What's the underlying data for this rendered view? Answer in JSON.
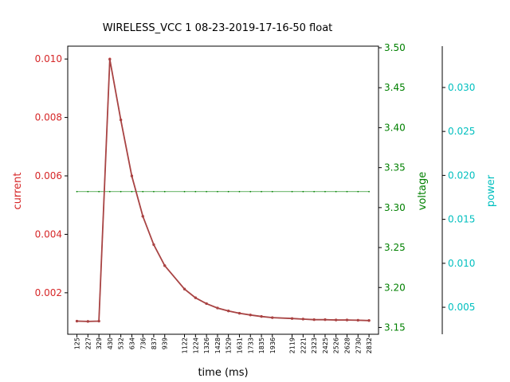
{
  "chart_data": {
    "type": "line",
    "title": "WIRELESS_VCC   1   08-23-2019-17-16-50   float",
    "xlabel": "time (ms)",
    "x_ticks": [
      125,
      227,
      329,
      430,
      532,
      634,
      736,
      837,
      939,
      1122,
      1224,
      1326,
      1428,
      1529,
      1631,
      1733,
      1835,
      1936,
      2119,
      2221,
      2323,
      2425,
      2526,
      2628,
      2730,
      2832
    ],
    "x_range": [
      40,
      2920
    ],
    "series": [
      {
        "name": "current",
        "axis": "left",
        "color": "#d62728",
        "x": [
          125,
          227,
          329,
          430,
          532,
          634,
          736,
          837,
          939,
          1122,
          1224,
          1326,
          1428,
          1529,
          1631,
          1733,
          1835,
          1936,
          2119,
          2221,
          2323,
          2425,
          2526,
          2628,
          2730,
          2832
        ],
        "y": [
          0.00103,
          0.00102,
          0.00103,
          0.01,
          0.00792,
          0.006,
          0.00462,
          0.00365,
          0.00293,
          0.00213,
          0.00183,
          0.00163,
          0.00148,
          0.00138,
          0.0013,
          0.00124,
          0.00119,
          0.00115,
          0.00112,
          0.0011,
          0.00108,
          0.00108,
          0.00107,
          0.00107,
          0.00106,
          0.00105
        ]
      },
      {
        "name": "voltage",
        "axis": "right",
        "color": "#008000",
        "x": [
          125,
          227,
          329,
          430,
          532,
          634,
          736,
          837,
          939,
          1122,
          1224,
          1326,
          1428,
          1529,
          1631,
          1733,
          1835,
          1936,
          2119,
          2221,
          2323,
          2425,
          2526,
          2628,
          2730,
          2832
        ],
        "y": [
          3.32,
          3.32,
          3.32,
          3.32,
          3.32,
          3.32,
          3.32,
          3.32,
          3.32,
          3.32,
          3.32,
          3.32,
          3.32,
          3.32,
          3.32,
          3.32,
          3.32,
          3.32,
          3.32,
          3.32,
          3.32,
          3.32,
          3.32,
          3.32,
          3.32,
          3.32
        ]
      },
      {
        "name": "power",
        "axis": "far-right",
        "color": "#a84444",
        "x": [
          125,
          227,
          329,
          430,
          532,
          634,
          736,
          837,
          939,
          1122,
          1224,
          1326,
          1428,
          1529,
          1631,
          1733,
          1835,
          1936,
          2119,
          2221,
          2323,
          2425,
          2526,
          2628,
          2730,
          2832
        ],
        "y": [
          0.00342,
          0.00339,
          0.00342,
          0.0332,
          0.0263,
          0.01992,
          0.01534,
          0.01212,
          0.00973,
          0.00707,
          0.00608,
          0.00541,
          0.00491,
          0.00458,
          0.00432,
          0.00412,
          0.00395,
          0.00382,
          0.00372,
          0.00365,
          0.00359,
          0.00359,
          0.00355,
          0.00355,
          0.00352,
          0.00349
        ]
      }
    ],
    "axes": {
      "left": {
        "label": "current",
        "color": "#d62728",
        "range": [
          0.00058,
          0.01044
        ],
        "ticks": [
          "0.002",
          "0.004",
          "0.006",
          "0.008",
          "0.010"
        ]
      },
      "right": {
        "label": "voltage",
        "color": "#008000",
        "range": [
          3.1415,
          3.502
        ],
        "ticks": [
          "3.15",
          "3.20",
          "3.25",
          "3.30",
          "3.35",
          "3.40",
          "3.45",
          "3.50"
        ]
      },
      "far-right": {
        "label": "power",
        "color": "#00bfbf",
        "range": [
          0.00193,
          0.0347
        ],
        "ticks": [
          "0.005",
          "0.010",
          "0.015",
          "0.020",
          "0.025",
          "0.030"
        ]
      }
    },
    "grid": false,
    "legend": "none"
  }
}
